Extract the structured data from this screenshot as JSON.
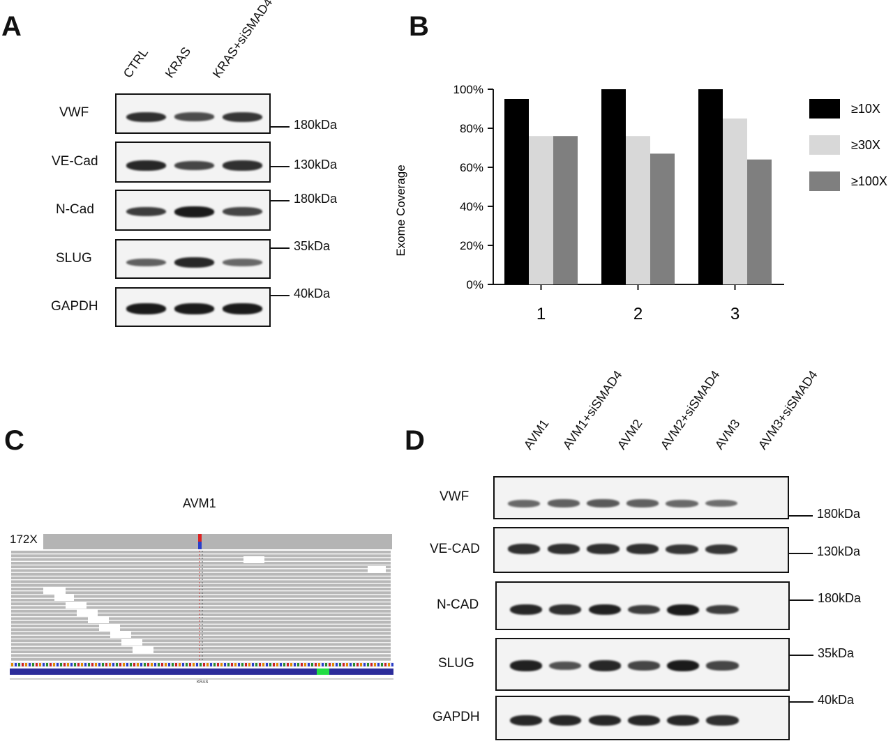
{
  "panel_a": {
    "letter": "A",
    "lanes": [
      "CTRL",
      "KRAS",
      "KRAS+siSMAD4"
    ],
    "rows": [
      {
        "name": "VWF",
        "kda": "180kDa",
        "intensity": [
          0.85,
          0.65,
          0.8
        ]
      },
      {
        "name": "VE-Cad",
        "kda": "130kDa",
        "intensity": [
          0.9,
          0.7,
          0.85
        ]
      },
      {
        "name": "N-Cad",
        "kda": "180kDa",
        "intensity": [
          0.75,
          1.0,
          0.7
        ]
      },
      {
        "name": "SLUG",
        "kda": "35kDa",
        "intensity": [
          0.5,
          0.9,
          0.45
        ]
      },
      {
        "name": "GAPDH",
        "kda": "40kDa",
        "intensity": [
          1.0,
          1.0,
          1.0
        ]
      }
    ]
  },
  "panel_b": {
    "letter": "B",
    "chart_data": {
      "type": "bar",
      "categories": [
        "1",
        "2",
        "3"
      ],
      "series": [
        {
          "name": "≥10X",
          "color": "#000000",
          "values": [
            95,
            100,
            100
          ]
        },
        {
          "name": "≥30X",
          "color": "#d8d8d8",
          "values": [
            76,
            76,
            85
          ]
        },
        {
          "name": "≥100X",
          "color": "#7f7f7f",
          "values": [
            76,
            67,
            64
          ]
        }
      ],
      "ylabel": "Exome Coverage",
      "xlabel": "",
      "ylim": [
        0,
        100
      ],
      "yticks": [
        "0%",
        "20%",
        "40%",
        "60%",
        "80%",
        "100%"
      ],
      "legend_position": "right"
    }
  },
  "panel_c": {
    "letter": "C",
    "title": "AVM1",
    "coverage_label": "172X",
    "gene_label": "KRAS"
  },
  "panel_d": {
    "letter": "D",
    "lanes": [
      "AVM1",
      "AVM1+siSMAD4",
      "AVM2",
      "AVM2+siSMAD4",
      "AVM3",
      "AVM3+siSMAD4"
    ],
    "rows": [
      {
        "name": "VWF",
        "kda": "180kDa",
        "intensity": [
          0.45,
          0.5,
          0.55,
          0.5,
          0.45,
          0.4
        ]
      },
      {
        "name": "VE-CAD",
        "kda": "130kDa",
        "intensity": [
          0.85,
          0.85,
          0.85,
          0.85,
          0.8,
          0.8
        ]
      },
      {
        "name": "N-CAD",
        "kda": "180kDa",
        "intensity": [
          0.9,
          0.85,
          0.95,
          0.75,
          1.0,
          0.75
        ]
      },
      {
        "name": "SLUG",
        "kda": "35kDa",
        "intensity": [
          0.95,
          0.6,
          0.9,
          0.7,
          1.0,
          0.7
        ]
      },
      {
        "name": "GAPDH",
        "kda": "40kDa",
        "intensity": [
          0.9,
          0.9,
          0.9,
          0.9,
          0.9,
          0.85
        ]
      }
    ]
  }
}
